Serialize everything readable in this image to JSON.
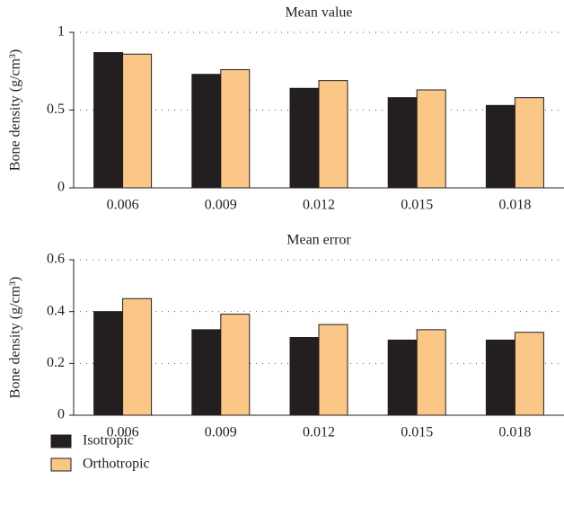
{
  "chart_data": [
    {
      "type": "bar",
      "title": "Mean value",
      "y_label": "Bone density (g/cm³)",
      "categories": [
        "0.006",
        "0.009",
        "0.012",
        "0.015",
        "0.018"
      ],
      "series": [
        {
          "name": "Isotropic",
          "color": "#231f20",
          "values": [
            0.87,
            0.73,
            0.64,
            0.58,
            0.53
          ]
        },
        {
          "name": "Orthotropic",
          "color": "#fac786",
          "values": [
            0.86,
            0.76,
            0.69,
            0.63,
            0.58
          ]
        }
      ],
      "ylim": [
        0,
        1
      ],
      "yticks": [
        0,
        0.5,
        1
      ],
      "grid": true
    },
    {
      "type": "bar",
      "title": "Mean error",
      "y_label": "Bone density (g/cm³)",
      "categories": [
        "0.006",
        "0.009",
        "0.012",
        "0.015",
        "0.018"
      ],
      "series": [
        {
          "name": "Isotropic",
          "color": "#231f20",
          "values": [
            0.4,
            0.33,
            0.3,
            0.29,
            0.29
          ]
        },
        {
          "name": "Orthotropic",
          "color": "#fac786",
          "values": [
            0.45,
            0.39,
            0.35,
            0.33,
            0.32
          ]
        }
      ],
      "ylim": [
        0,
        0.6
      ],
      "yticks": [
        0,
        0.2,
        0.4,
        0.6
      ],
      "grid": true
    }
  ]
}
